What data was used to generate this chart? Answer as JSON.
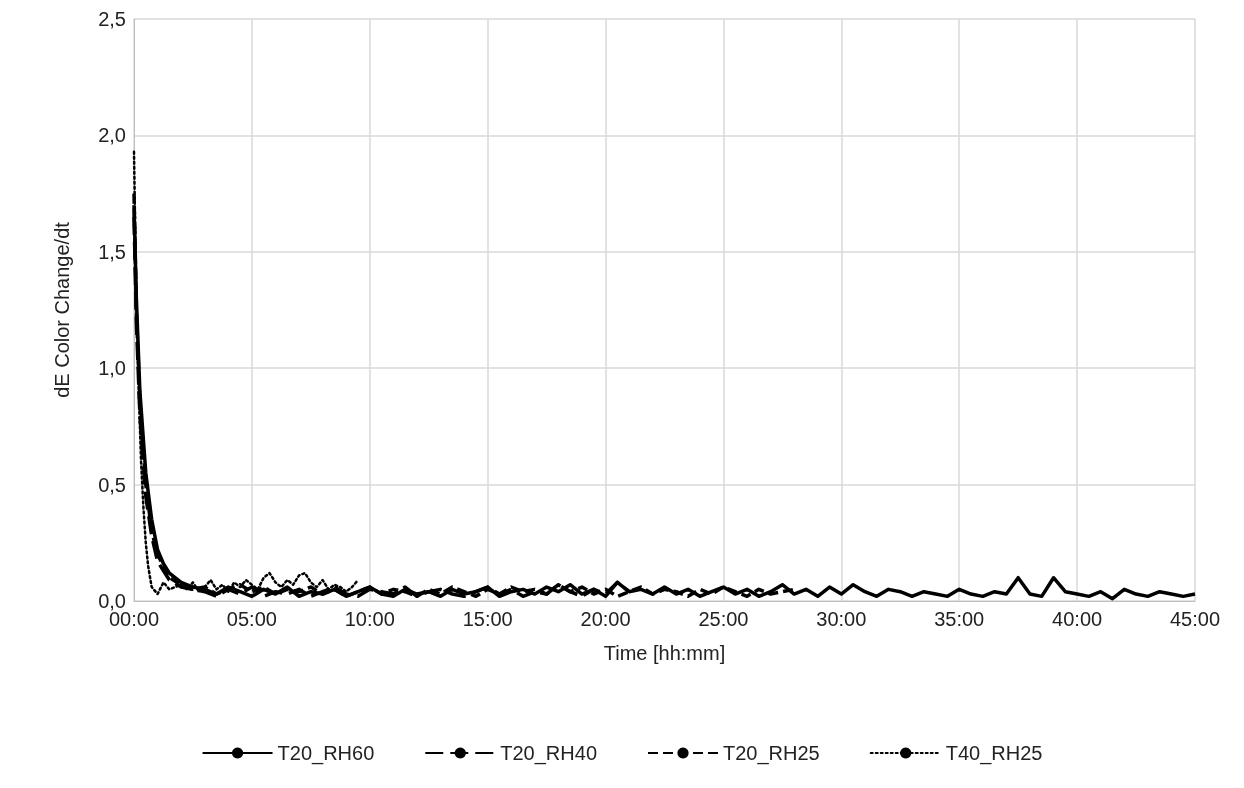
{
  "chart_data": {
    "type": "line",
    "xlabel": "Time [hh:mm]",
    "ylabel": "dE Color Change/dt",
    "xlim": [
      0,
      45
    ],
    "xticks": [
      {
        "value": 0,
        "label": "00:00"
      },
      {
        "value": 5,
        "label": "05:00"
      },
      {
        "value": 10,
        "label": "10:00"
      },
      {
        "value": 15,
        "label": "15:00"
      },
      {
        "value": 20,
        "label": "20:00"
      },
      {
        "value": 25,
        "label": "25:00"
      },
      {
        "value": 30,
        "label": "30:00"
      },
      {
        "value": 35,
        "label": "35:00"
      },
      {
        "value": 40,
        "label": "40:00"
      },
      {
        "value": 45,
        "label": "45:00"
      }
    ],
    "ylim": [
      0,
      2.5
    ],
    "yticks": [
      {
        "value": 0,
        "label": "0,0"
      },
      {
        "value": 0.5,
        "label": "0,5"
      },
      {
        "value": 1,
        "label": "1,0"
      },
      {
        "value": 1.5,
        "label": "1,5"
      },
      {
        "value": 2,
        "label": "2,0"
      },
      {
        "value": 2.5,
        "label": "2,5"
      }
    ],
    "grid": true,
    "legend": "bottom",
    "marker": "none",
    "series": [
      {
        "name": "T20_RH60",
        "color": "#000000",
        "line_style": "solid",
        "x": [
          0,
          0.1,
          0.25,
          0.5,
          0.75,
          1,
          1.25,
          1.5,
          2,
          2.5,
          3,
          3.5,
          4,
          4.5,
          5,
          5.5,
          6,
          6.5,
          7,
          7.5,
          8,
          8.5,
          9,
          9.5,
          10,
          10.5,
          11,
          11.5,
          12,
          12.5,
          13,
          13.5,
          14,
          14.5,
          15,
          15.5,
          16,
          16.5,
          17,
          17.5,
          18,
          18.5,
          19,
          19.5,
          20,
          20.5,
          21,
          21.5,
          22,
          22.5,
          23,
          23.5,
          24,
          24.5,
          25,
          25.5,
          26,
          26.5,
          27,
          27.5,
          28,
          28.5,
          29,
          29.5,
          30,
          30.5,
          31,
          31.5,
          32,
          32.5,
          33,
          33.5,
          34,
          34.5,
          35,
          35.5,
          36,
          36.5,
          37,
          37.5,
          38,
          38.5,
          39,
          39.5,
          40,
          40.5,
          41,
          41.5,
          42,
          42.5,
          43,
          43.5,
          44,
          44.5,
          45
        ],
        "values": [
          1.7,
          1.3,
          0.9,
          0.55,
          0.35,
          0.22,
          0.16,
          0.12,
          0.08,
          0.06,
          0.05,
          0.03,
          0.06,
          0.04,
          0.02,
          0.05,
          0.03,
          0.06,
          0.02,
          0.04,
          0.03,
          0.05,
          0.02,
          0.04,
          0.06,
          0.03,
          0.02,
          0.05,
          0.03,
          0.04,
          0.02,
          0.05,
          0.03,
          0.04,
          0.06,
          0.02,
          0.04,
          0.05,
          0.03,
          0.06,
          0.04,
          0.07,
          0.03,
          0.05,
          0.02,
          0.08,
          0.04,
          0.05,
          0.03,
          0.06,
          0.03,
          0.05,
          0.02,
          0.04,
          0.06,
          0.03,
          0.05,
          0.02,
          0.04,
          0.07,
          0.03,
          0.05,
          0.02,
          0.06,
          0.03,
          0.07,
          0.04,
          0.02,
          0.05,
          0.04,
          0.02,
          0.04,
          0.03,
          0.02,
          0.05,
          0.03,
          0.02,
          0.04,
          0.03,
          0.1,
          0.03,
          0.02,
          0.1,
          0.04,
          0.03,
          0.02,
          0.04,
          0.01,
          0.05,
          0.03,
          0.02,
          0.04,
          0.03,
          0.02,
          0.03
        ]
      },
      {
        "name": "T20_RH40",
        "color": "#000000",
        "line_style": "dashed",
        "x": [
          0,
          0.1,
          0.25,
          0.5,
          0.75,
          1,
          1.5,
          2,
          2.5,
          3,
          3.5,
          4,
          4.5,
          5,
          5.5,
          6,
          6.5,
          7,
          7.5,
          8,
          8.5,
          9,
          9.5,
          10,
          10.5,
          11,
          11.5,
          12,
          12.5,
          13,
          13.5,
          14,
          14.5,
          15,
          15.5,
          16,
          16.5,
          17,
          17.5,
          18,
          18.5,
          19,
          19.5,
          20,
          20.5,
          21
        ],
        "values": [
          1.65,
          1.2,
          0.8,
          0.45,
          0.28,
          0.17,
          0.09,
          0.06,
          0.05,
          0.04,
          0.02,
          0.05,
          0.03,
          0.06,
          0.02,
          0.04,
          0.03,
          0.05,
          0.02,
          0.04,
          0.06,
          0.03,
          0.02,
          0.05,
          0.04,
          0.03,
          0.06,
          0.02,
          0.04,
          0.05,
          0.03,
          0.02,
          0.04,
          0.06,
          0.03,
          0.05,
          0.02,
          0.04,
          0.03,
          0.07,
          0.04,
          0.02,
          0.05,
          0.03,
          0.08,
          0.04
        ]
      },
      {
        "name": "T20_RH25",
        "color": "#000000",
        "line_style": "dashed",
        "x": [
          0,
          0.1,
          0.25,
          0.5,
          0.75,
          1,
          1.5,
          2,
          2.5,
          3,
          3.5,
          4,
          4.5,
          5,
          5.5,
          6,
          6.5,
          7,
          7.5,
          8,
          8.5,
          9,
          9.5,
          10,
          10.5,
          11,
          11.5,
          12,
          12.5,
          13,
          13.5,
          14,
          14.5,
          15,
          15.5,
          16,
          16.5,
          17,
          17.5,
          18,
          18.5,
          19,
          19.5,
          20,
          20.5,
          21,
          21.5,
          22,
          22.5,
          23,
          23.5,
          24,
          24.5,
          25,
          25.5,
          26,
          26.5,
          27,
          27.5,
          28
        ],
        "values": [
          1.75,
          1.25,
          0.85,
          0.5,
          0.3,
          0.2,
          0.1,
          0.07,
          0.05,
          0.06,
          0.03,
          0.05,
          0.07,
          0.04,
          0.06,
          0.03,
          0.05,
          0.04,
          0.06,
          0.03,
          0.05,
          0.02,
          0.04,
          0.06,
          0.03,
          0.05,
          0.04,
          0.02,
          0.05,
          0.03,
          0.06,
          0.04,
          0.02,
          0.05,
          0.03,
          0.06,
          0.04,
          0.05,
          0.03,
          0.07,
          0.04,
          0.06,
          0.03,
          0.05,
          0.02,
          0.04,
          0.06,
          0.03,
          0.05,
          0.04,
          0.02,
          0.05,
          0.03,
          0.06,
          0.04,
          0.02,
          0.05,
          0.03,
          0.04,
          0.05
        ]
      },
      {
        "name": "T40_RH25",
        "color": "#000000",
        "line_style": "dotted",
        "x": [
          0,
          0.05,
          0.1,
          0.2,
          0.3,
          0.4,
          0.5,
          0.6,
          0.75,
          1,
          1.25,
          1.5,
          2,
          2.25,
          2.5,
          2.75,
          3,
          3.25,
          3.5,
          3.75,
          4,
          4.25,
          4.5,
          4.75,
          5,
          5.25,
          5.5,
          5.75,
          6,
          6.25,
          6.5,
          6.75,
          7,
          7.25,
          7.5,
          7.75,
          8,
          8.25,
          8.5,
          8.75,
          9,
          9.25,
          9.5
        ],
        "values": [
          1.93,
          1.6,
          1.3,
          0.9,
          0.6,
          0.4,
          0.25,
          0.15,
          0.06,
          0.03,
          0.08,
          0.05,
          0.07,
          0.05,
          0.08,
          0.04,
          0.06,
          0.09,
          0.05,
          0.07,
          0.04,
          0.08,
          0.06,
          0.09,
          0.07,
          0.05,
          0.1,
          0.12,
          0.08,
          0.06,
          0.09,
          0.07,
          0.11,
          0.12,
          0.08,
          0.06,
          0.09,
          0.05,
          0.07,
          0.06,
          0.04,
          0.06,
          0.09
        ]
      }
    ]
  }
}
